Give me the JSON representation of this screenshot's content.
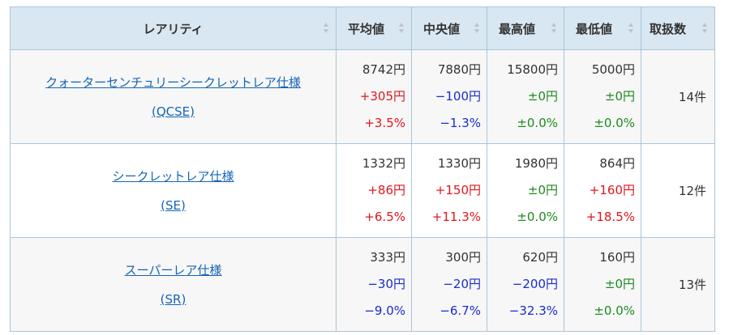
{
  "headers": [
    "レアリティ",
    "平均値",
    "中央値",
    "最高値",
    "最低値",
    "取扱数"
  ],
  "rows": [
    {
      "name_line1": "クォーターセンチュリーシークレットレア仕様",
      "name_line2": "(QCSE)",
      "cols": [
        {
          "price": "8742円",
          "diff": "+305円",
          "pct": "+3.5%",
          "dir": "up"
        },
        {
          "price": "7880円",
          "diff": "−100円",
          "pct": "−1.3%",
          "dir": "dn"
        },
        {
          "price": "15800円",
          "diff": "±0円",
          "pct": "±0.0%",
          "dir": "zr"
        },
        {
          "price": "5000円",
          "diff": "±0円",
          "pct": "±0.0%",
          "dir": "zr"
        }
      ],
      "count": "14件"
    },
    {
      "name_line1": "シークレットレア仕様",
      "name_line2": "(SE)",
      "cols": [
        {
          "price": "1332円",
          "diff": "+86円",
          "pct": "+6.5%",
          "dir": "up"
        },
        {
          "price": "1330円",
          "diff": "+150円",
          "pct": "+11.3%",
          "dir": "up"
        },
        {
          "price": "1980円",
          "diff": "±0円",
          "pct": "±0.0%",
          "dir": "zr"
        },
        {
          "price": "864円",
          "diff": "+160円",
          "pct": "+18.5%",
          "dir": "up"
        }
      ],
      "count": "12件"
    },
    {
      "name_line1": "スーパーレア仕様",
      "name_line2": "(SR)",
      "cols": [
        {
          "price": "333円",
          "diff": "−30円",
          "pct": "−9.0%",
          "dir": "dn"
        },
        {
          "price": "300円",
          "diff": "−20円",
          "pct": "−6.7%",
          "dir": "dn"
        },
        {
          "price": "620円",
          "diff": "−200円",
          "pct": "−32.3%",
          "dir": "dn"
        },
        {
          "price": "160円",
          "diff": "±0円",
          "pct": "±0.0%",
          "dir": "zr"
        }
      ],
      "count": "13件"
    }
  ],
  "colors": {
    "header_bg": "#d8e7f2",
    "border": "#a9c6da",
    "link": "#1565b5",
    "increase": "#e0161c",
    "decrease": "#1a2ccf",
    "no_change": "#1e8a1e"
  }
}
